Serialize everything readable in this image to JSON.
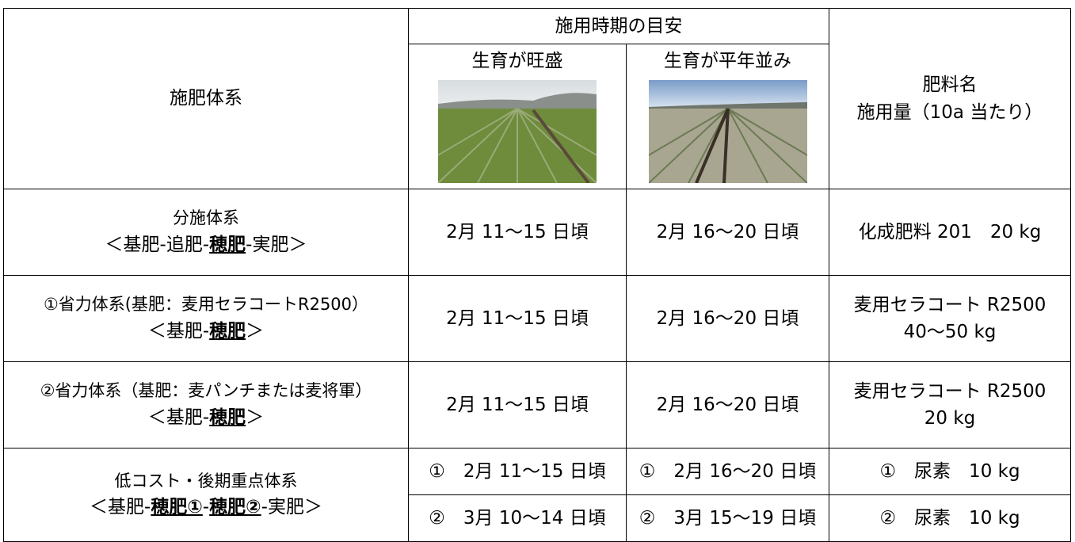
{
  "table": {
    "header": {
      "system": "施肥体系",
      "timing": "施用時期の目安",
      "vigorous": "生育が旺盛",
      "normal": "生育が平年並み",
      "fertilizer": [
        "肥料名",
        "施用量（10a 当たり）"
      ]
    },
    "rows": [
      {
        "system": [
          [
            {
              "text": "分施体系"
            }
          ],
          [
            {
              "text": "＜基肥‐追肥‐"
            },
            {
              "text": "穂肥",
              "em": true
            },
            {
              "text": "‐実肥＞"
            }
          ]
        ],
        "vigorous": [
          "2月 11〜15 日頃"
        ],
        "normal": [
          "2月 16〜20 日頃"
        ],
        "fertilizer": [
          "化成肥料 201　20 kg"
        ],
        "split": false
      },
      {
        "system": [
          [
            {
              "text": "①省力体系(基肥：麦用セラコートR2500）"
            }
          ],
          [
            {
              "text": "＜基肥‐"
            },
            {
              "text": "穂肥",
              "em": true
            },
            {
              "text": "＞"
            }
          ]
        ],
        "vigorous": [
          "2月 11〜15 日頃"
        ],
        "normal": [
          "2月 16〜20 日頃"
        ],
        "fertilizer": [
          "麦用セラコート R2500",
          "40〜50 kg"
        ],
        "split": false
      },
      {
        "system": [
          [
            {
              "text": "②省力体系（基肥：麦パンチまたは麦将軍）"
            }
          ],
          [
            {
              "text": "＜基肥‐"
            },
            {
              "text": "穂肥",
              "em": true
            },
            {
              "text": "＞"
            }
          ]
        ],
        "vigorous": [
          "2月 11〜15 日頃"
        ],
        "normal": [
          "2月 16〜20 日頃"
        ],
        "fertilizer": [
          "麦用セラコート R2500",
          "20 kg"
        ],
        "split": false
      },
      {
        "system": [
          [
            {
              "text": "低コスト・後期重点体系"
            }
          ],
          [
            {
              "text": "＜基肥‐"
            },
            {
              "text": "穂肥①",
              "em": true
            },
            {
              "text": "‐"
            },
            {
              "text": "穂肥②",
              "em": true
            },
            {
              "text": "‐実肥＞"
            }
          ]
        ],
        "vigorous": [
          "①　2月 11〜15 日頃",
          "②　3月 10〜14 日頃"
        ],
        "normal": [
          "①　2月 16〜20 日頃",
          "②　3月 15〜19 日頃"
        ],
        "fertilizer": [
          "①　尿素　10 kg",
          "②　尿素　10 kg"
        ],
        "split": true
      }
    ]
  }
}
